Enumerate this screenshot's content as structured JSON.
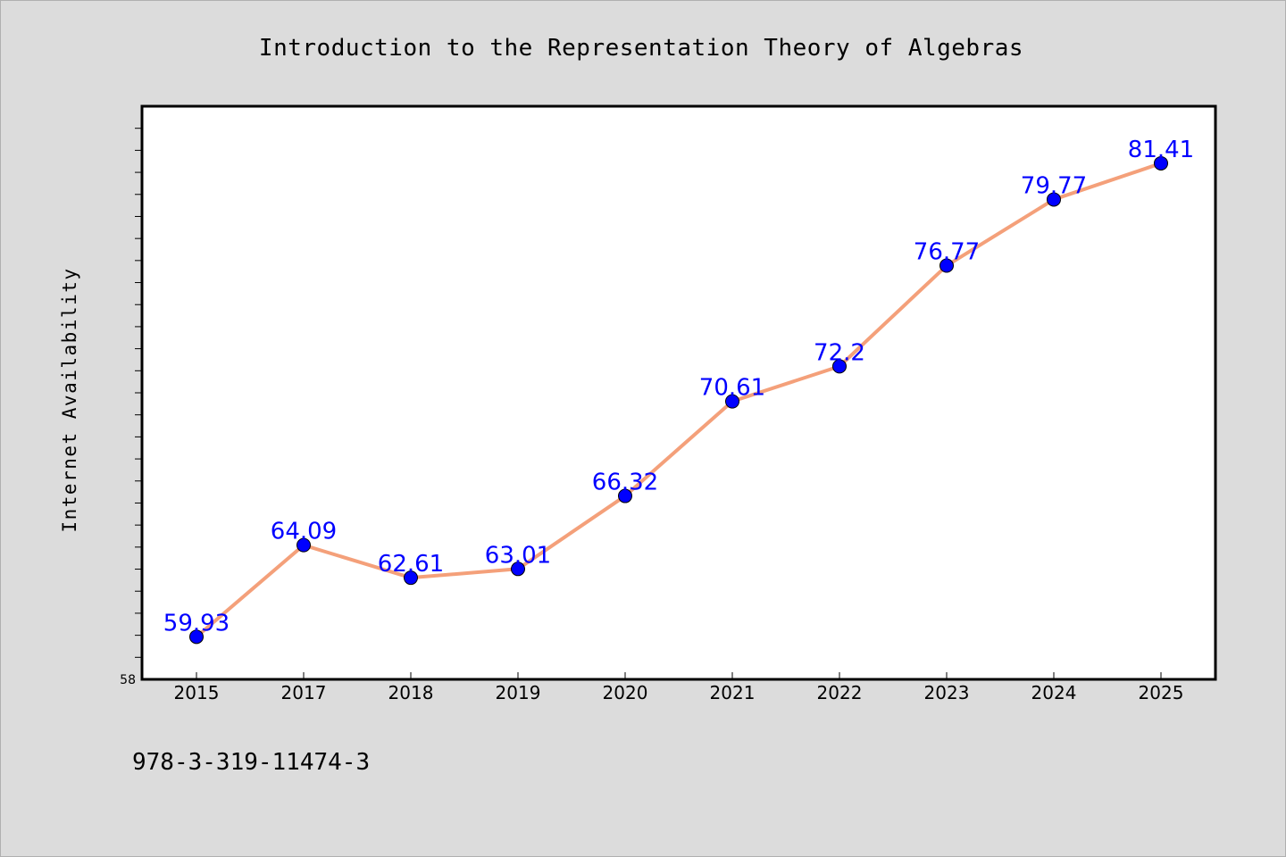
{
  "chart_data": {
    "type": "line",
    "title": "Introduction to the Representation Theory of Algebras",
    "ylabel": "Internet Availability",
    "xlabel": "",
    "categories": [
      "2015",
      "2017",
      "2018",
      "2019",
      "2020",
      "2021",
      "2022",
      "2023",
      "2024",
      "2025"
    ],
    "series": [
      {
        "values": [
          59.93,
          64.09,
          62.61,
          63.01,
          66.32,
          70.61,
          72.2,
          76.77,
          79.77,
          81.41
        ],
        "data_labels": [
          "59.93",
          "64.09",
          "62.61",
          "63.01",
          "66.32",
          "70.61",
          "72.2",
          "76.77",
          "79.77",
          "81.41"
        ]
      }
    ],
    "ylim": [
      58,
      84
    ],
    "y_tick_labels": [
      "58"
    ],
    "grid": false,
    "line_color": "#f4a07a",
    "marker_color": "#0000ff",
    "label_color": "#0000ff"
  },
  "footer": {
    "isbn": "978-3-319-11474-3"
  }
}
